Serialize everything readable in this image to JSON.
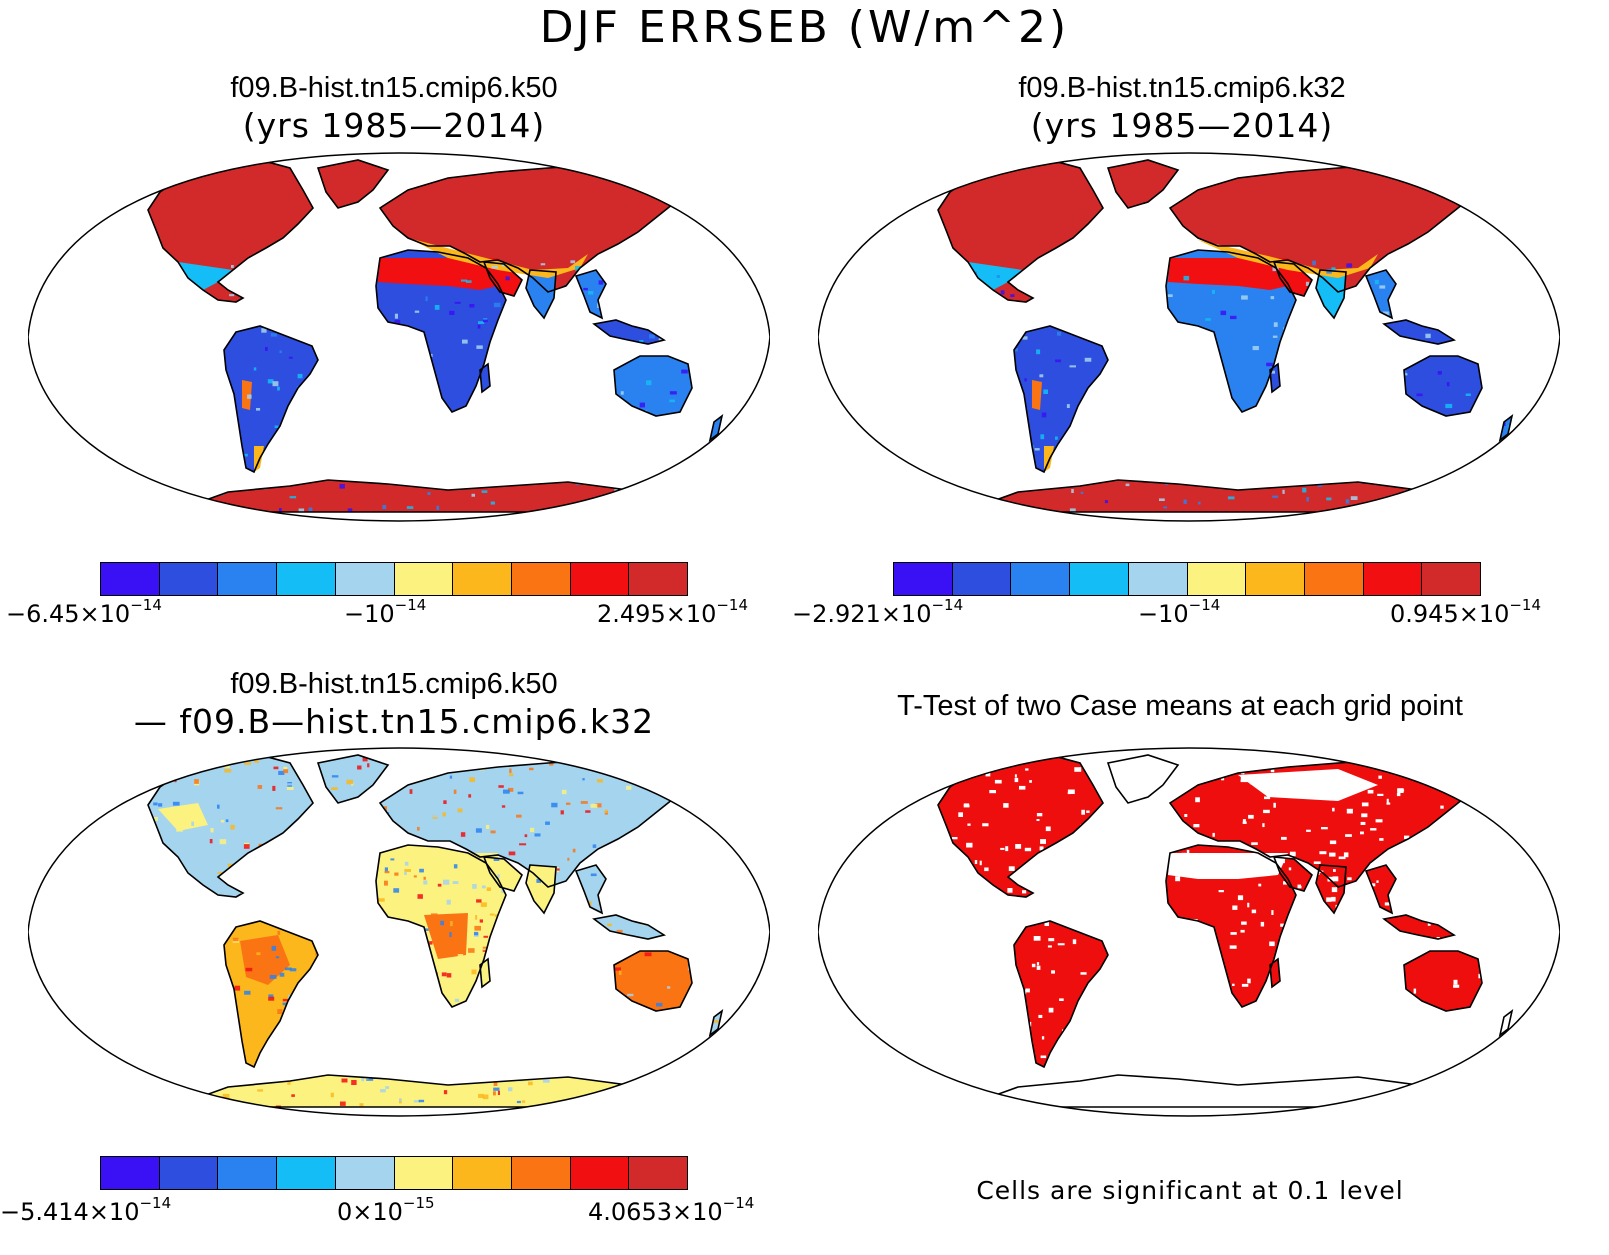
{
  "title": "DJF ERRSEB (W/m^2)",
  "panels": {
    "tl": {
      "title": "f09.B-hist.tn15.cmip6.k50",
      "subtitle": "(yrs 1985—2014)",
      "style": "case1"
    },
    "tr": {
      "title": "f09.B-hist.tn15.cmip6.k32",
      "subtitle": "(yrs 1985—2014)",
      "style": "case2"
    },
    "bl": {
      "title": "f09.B-hist.tn15.cmip6.k50",
      "subtitle": "— f09.B—hist.tn15.cmip6.k32",
      "style": "diff"
    },
    "br": {
      "title": "T-Test of two Case means at each grid point",
      "style": "ttest",
      "footnote": "Cells are significant at 0.1 level"
    }
  },
  "colorbars": {
    "top_left": {
      "left": {
        "mant": "−6.45×10",
        "exp": "−14"
      },
      "mid": {
        "mant": "−10",
        "exp": "−14"
      },
      "right": {
        "mant": "2.495×10",
        "exp": "−14"
      }
    },
    "top_right": {
      "left": {
        "mant": "−2.921×10",
        "exp": "−14"
      },
      "mid": {
        "mant": "−10",
        "exp": "−14"
      },
      "right": {
        "mant": "0.945×10",
        "exp": "−14"
      }
    },
    "bottom_left": {
      "left": {
        "mant": "−5.414×10",
        "exp": "−14"
      },
      "mid": {
        "mant": "0×10",
        "exp": "−15"
      },
      "right": {
        "mant": "4.0653×10",
        "exp": "−14"
      }
    }
  },
  "palette": [
    "#3a10f5",
    "#2e4ee0",
    "#2a82f0",
    "#14bdf5",
    "#a4d4ee",
    "#fbf280",
    "#fbb71c",
    "#fa7414",
    "#f20f12",
    "#d22a2a"
  ],
  "significance_color": "#ee0e0e"
}
